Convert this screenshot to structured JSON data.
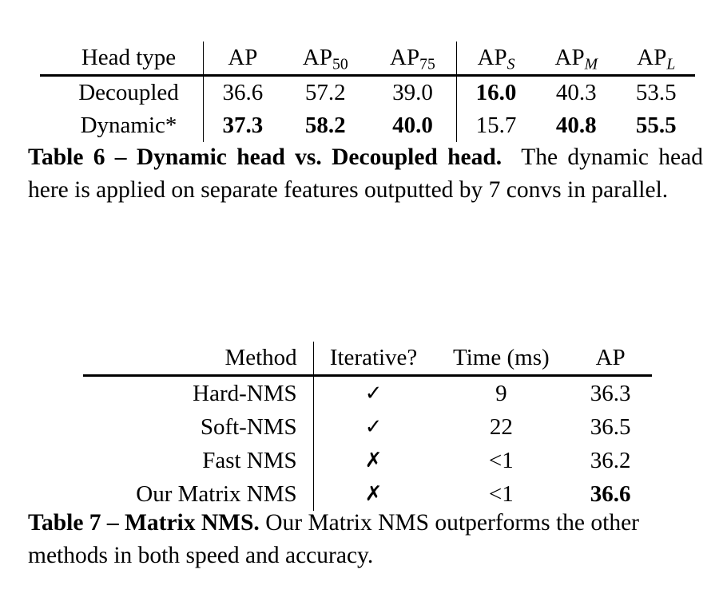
{
  "table6": {
    "headers": {
      "head_type": "Head type",
      "ap": "AP",
      "ap50_base": "AP",
      "ap50_sub": "50",
      "ap75_base": "AP",
      "ap75_sub": "75",
      "aps_base": "AP",
      "aps_sub": "S",
      "apm_base": "AP",
      "apm_sub": "M",
      "apl_base": "AP",
      "apl_sub": "L"
    },
    "rows": [
      {
        "name": "Decoupled",
        "values": [
          "36.6",
          "57.2",
          "39.0",
          "16.0",
          "40.3",
          "53.5"
        ]
      },
      {
        "name": "Dynamic*",
        "values": [
          "37.3",
          "58.2",
          "40.0",
          "15.7",
          "40.8",
          "55.5"
        ]
      }
    ],
    "caption_label": "Table 6 – Dynamic head vs. Decoupled head.",
    "caption_text": "The dynamic head here is applied on separate features outputted by 7 convs in parallel."
  },
  "table7": {
    "headers": {
      "method": "Method",
      "iterative": "Iterative?",
      "time": "Time (ms)",
      "ap": "AP"
    },
    "rows": [
      {
        "method": "Hard-NMS",
        "iterative": "✓",
        "time": "9",
        "ap": "36.3"
      },
      {
        "method": "Soft-NMS",
        "iterative": "✓",
        "time": "22",
        "ap": "36.5"
      },
      {
        "method": "Fast NMS",
        "iterative": "✗",
        "time": "<1",
        "ap": "36.2"
      },
      {
        "method": "Our Matrix NMS",
        "iterative": "✗",
        "time": "<1",
        "ap": "36.6"
      }
    ],
    "caption_label": "Table 7 – Matrix NMS.",
    "caption_text": "Our Matrix NMS outperforms the other methods in both speed and accuracy."
  }
}
